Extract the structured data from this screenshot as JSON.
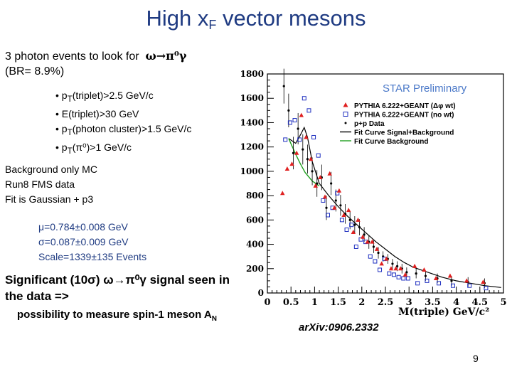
{
  "slide": {
    "title_main": "High x",
    "title_sub": "F",
    "title_end": " vector mesons",
    "intro_line1_text": "3 photon events to look for",
    "intro_line1_sym": "ω→π⁰γ",
    "intro_line2": "(BR= 8.9%)",
    "bullets": [
      {
        "pre": "• p",
        "sub": "T",
        "post": "(triplet)>2.5 GeV/c"
      },
      {
        "pre": "• E(triplet)>30 GeV",
        "sub": "",
        "post": ""
      },
      {
        "pre": "• p",
        "sub": "T",
        "post": "(photon cluster)>1.5 GeV/c"
      },
      {
        "pre": "• p",
        "sub": "T",
        "post": "(π⁰)>1 GeV/c"
      }
    ],
    "mc_lines": [
      "Background only MC",
      "Run8 FMS data",
      "Fit is Gaussian + p3"
    ],
    "fit_params": [
      "μ=0.784±0.008 GeV",
      "σ=0.087±0.009 GeV",
      "Scale=1339±135 Events"
    ],
    "significance_1": "Significant (10σ) ω→π⁰γ signal seen in",
    "significance_2": "the data =>",
    "possibility_main": "possibility to measure spin-1 meson A",
    "possibility_sub": "N",
    "arxiv": "arXiv:0906.2332",
    "page_number": "9"
  },
  "chart_data": {
    "type": "scatter",
    "watermark": "STAR Preliminary",
    "xlabel": "M(triple) GeV/c²",
    "xlim": [
      0,
      5
    ],
    "ylim": [
      0,
      1800
    ],
    "x_ticks": [
      "0",
      "0.5",
      "1",
      "1.5",
      "2",
      "2.5",
      "3",
      "3.5",
      "4",
      "4.5",
      "5"
    ],
    "y_ticks": [
      "0",
      "200",
      "400",
      "600",
      "800",
      "1000",
      "1200",
      "1400",
      "1600",
      "1800"
    ],
    "legend": [
      {
        "label": "PYTHIA 6.222+GEANT (Δφ wt)",
        "marker": "triangle",
        "color": "#e02020"
      },
      {
        "label": "PYTHIA 6.222+GEANT (no wt)",
        "marker": "open-square",
        "color": "#2030c0"
      },
      {
        "label": "p+p Data",
        "marker": "point",
        "color": "#000000"
      },
      {
        "label": "Fit Curve Signal+Background",
        "marker": "line",
        "color": "#000000"
      },
      {
        "label": "Fit Curve Background",
        "marker": "line",
        "color": "#20a020"
      }
    ],
    "series": [
      {
        "name": "PYTHIA 6.222+GEANT (Δφ wt)",
        "x": [
          0.35,
          0.45,
          0.55,
          0.65,
          0.75,
          0.85,
          0.95,
          1.05,
          1.15,
          1.25,
          1.35,
          1.45,
          1.55,
          1.65,
          1.75,
          1.85,
          1.95,
          2.05,
          2.15,
          2.25,
          2.35,
          2.45,
          2.55,
          2.65,
          2.75,
          2.85,
          2.95,
          3.15,
          3.35,
          3.6,
          3.9,
          4.25,
          4.6
        ],
        "y": [
          820,
          1020,
          1060,
          1150,
          1460,
          1280,
          1100,
          880,
          950,
          790,
          980,
          700,
          840,
          640,
          680,
          500,
          600,
          460,
          420,
          420,
          360,
          240,
          280,
          200,
          200,
          200,
          150,
          220,
          190,
          120,
          140,
          100,
          90
        ]
      },
      {
        "name": "PYTHIA 6.222+GEANT (no wt)",
        "x": [
          0.35,
          0.45,
          0.55,
          0.65,
          0.75,
          0.85,
          0.95,
          1.05,
          1.15,
          1.25,
          1.35,
          1.45,
          1.55,
          1.65,
          1.75,
          1.85,
          1.95,
          2.05,
          2.15,
          2.25,
          2.35,
          2.45,
          2.55,
          2.65,
          2.75,
          2.85,
          2.95,
          3.15,
          3.35,
          3.6,
          3.9,
          4.25,
          4.6
        ],
        "y": [
          1260,
          1400,
          1420,
          1260,
          1600,
          1500,
          1280,
          1130,
          760,
          640,
          700,
          820,
          600,
          520,
          560,
          380,
          440,
          420,
          300,
          260,
          190,
          280,
          160,
          150,
          130,
          120,
          120,
          80,
          100,
          80,
          60,
          60,
          40
        ]
      },
      {
        "name": "p+p Data",
        "x": [
          0.35,
          0.45,
          0.55,
          0.65,
          0.75,
          0.85,
          0.95,
          1.05,
          1.15,
          1.25,
          1.35,
          1.45,
          1.55,
          1.65,
          1.75,
          1.85,
          1.95,
          2.05,
          2.15,
          2.25,
          2.35,
          2.45,
          2.55,
          2.65,
          2.75,
          2.85,
          2.95,
          3.15,
          3.35,
          3.6,
          3.9,
          4.25,
          4.6
        ],
        "y": [
          1700,
          1500,
          1150,
          1350,
          1180,
          1100,
          1000,
          900,
          950,
          700,
          900,
          760,
          720,
          650,
          600,
          560,
          540,
          480,
          420,
          380,
          330,
          300,
          280,
          240,
          220,
          200,
          170,
          160,
          140,
          120,
          100,
          90,
          80
        ]
      },
      {
        "name": "Fit Curve Signal+Background",
        "x": [
          0.45,
          0.6,
          0.7,
          0.78,
          0.85,
          0.95,
          1.1,
          1.3,
          1.5,
          1.7,
          1.9,
          2.1,
          2.3,
          2.5,
          2.7,
          2.9,
          3.1,
          3.4,
          3.7,
          4.0,
          4.3,
          4.6,
          4.95
        ],
        "y": [
          1270,
          1230,
          1300,
          1360,
          1280,
          1080,
          900,
          800,
          710,
          630,
          560,
          490,
          420,
          360,
          300,
          250,
          210,
          170,
          130,
          100,
          80,
          60,
          45
        ]
      },
      {
        "name": "Fit Curve Background",
        "x": [
          0.45,
          0.6,
          0.7,
          0.8,
          0.95,
          1.1
        ],
        "y": [
          1270,
          1140,
          1060,
          990,
          920,
          880
        ]
      }
    ]
  }
}
